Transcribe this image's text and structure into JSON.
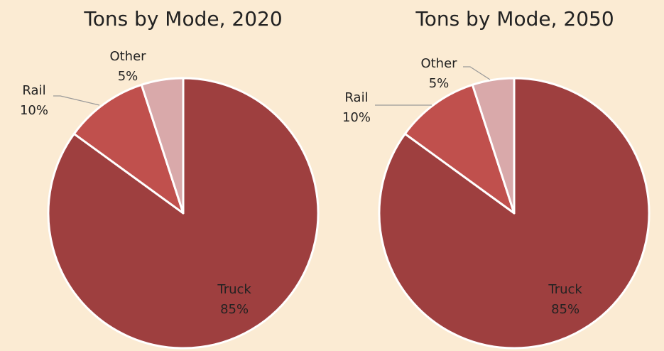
{
  "chart_data": [
    {
      "type": "pie",
      "title": "Tons by Mode, 2020",
      "categories": [
        "Truck",
        "Rail",
        "Other"
      ],
      "values": [
        85,
        10,
        5
      ],
      "value_labels": [
        "85%",
        "10%",
        "5%"
      ],
      "colors": [
        "#9e3f3f",
        "#c0504d",
        "#d9a9aa"
      ]
    },
    {
      "type": "pie",
      "title": "Tons by Mode, 2050",
      "categories": [
        "Truck",
        "Rail",
        "Other"
      ],
      "values": [
        85,
        10,
        5
      ],
      "value_labels": [
        "85%",
        "10%",
        "5%"
      ],
      "colors": [
        "#9e3f3f",
        "#c0504d",
        "#d9a9aa"
      ]
    }
  ]
}
